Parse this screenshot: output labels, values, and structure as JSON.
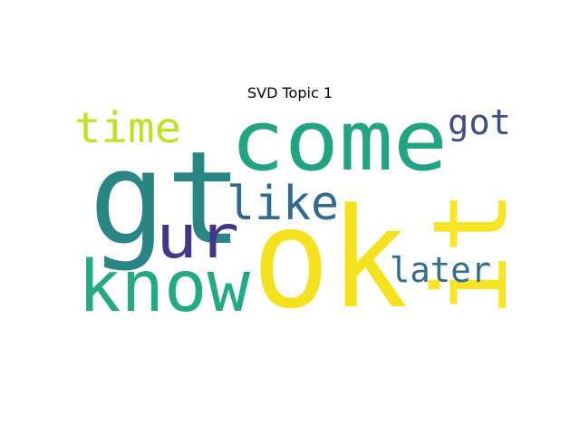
{
  "chart_data": {
    "type": "wordcloud",
    "title": "SVD Topic 1",
    "background": "#ffffff",
    "words": [
      {
        "text": "gt",
        "color": "#2a8585"
      },
      {
        "text": "ok",
        "color": "#f5e21f"
      },
      {
        "text": "come",
        "color": "#22a384"
      },
      {
        "text": "know",
        "color": "#24a985"
      },
      {
        "text": "it",
        "color": "#f7e424"
      },
      {
        "text": "ur",
        "color": "#433684"
      },
      {
        "text": "like",
        "color": "#2f6b8e"
      },
      {
        "text": "time",
        "color": "#c2df23"
      },
      {
        "text": "later",
        "color": "#2f6e8e"
      },
      {
        "text": "got",
        "color": "#404c86"
      }
    ]
  }
}
